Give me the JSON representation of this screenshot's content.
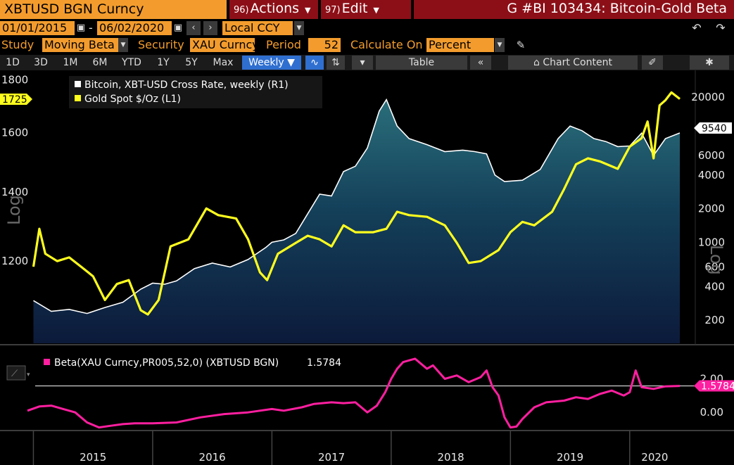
{
  "header": {
    "ticker": "XBTUSD BGN Curncy",
    "actions": {
      "num": "96)",
      "label": "Actions"
    },
    "edit": {
      "num": "97)",
      "label": "Edit"
    },
    "title": "G #BI 103434: Bitcoin-Gold Beta"
  },
  "dates": {
    "start": "01/01/2015",
    "end": "06/02/2020",
    "currency": "Local CCY"
  },
  "study": {
    "study_label": "Study",
    "study_value": "Moving Beta",
    "security_label": "Security",
    "security_value": "XAU Curncy",
    "period_label": "Period",
    "period_value": "52",
    "calc_label": "Calculate On",
    "calc_value": "Percent"
  },
  "timebar": {
    "ranges": [
      "1D",
      "3D",
      "1M",
      "6M",
      "YTD",
      "1Y",
      "5Y",
      "Max"
    ],
    "frequency": "Weekly",
    "table": "Table",
    "chart_content": "Chart Content"
  },
  "icons": {
    "undo": "undo-icon",
    "redo": "redo-icon",
    "pen": "pen-icon",
    "calendar": "calendar-icon",
    "line": "line-chart-icon",
    "bars": "bar-style-icon",
    "collapse": "double-chevron-left-icon",
    "chart_content": "chart-content-icon",
    "edit": "edit-icon",
    "gear": "gear-icon"
  },
  "colors": {
    "orange": "#f39c2d",
    "header_red": "#8c0f17",
    "gold_line": "#ffff1e",
    "bitcoin_line": "#ffffff",
    "beta_line": "#ff1fa0",
    "area_top": "#2a6e7a",
    "area_bottom": "#0c1a3a",
    "selected_blue": "#2f6fd0"
  },
  "chart_data": [
    {
      "type": "area",
      "legend": [
        {
          "name": "Bitcoin, XBT-USD Cross Rate, weekly (R1)",
          "color": "#ffffff"
        },
        {
          "name": "Gold Spot $/Oz (L1)",
          "color": "#ffff1e"
        }
      ],
      "x_labels": [
        "2015",
        "2016",
        "2017",
        "2018",
        "2019",
        "2020"
      ],
      "left_axis": {
        "label": "Log",
        "ticks": [
          "1800",
          "1600",
          "1400",
          "1200"
        ],
        "ylim": [
          1050,
          1810
        ]
      },
      "right_axis": {
        "label": "Log",
        "ticks": [
          "20000",
          "6000",
          "4000",
          "2000",
          "1000",
          "600",
          "400",
          "200"
        ],
        "ylim": [
          150,
          26000
        ]
      },
      "last_values": {
        "gold": "1725",
        "bitcoin": "9540"
      },
      "series": [
        {
          "name": "Bitcoin, XBT-USD Cross Rate, weekly (R1)",
          "axis": "right",
          "x": [
            2015.0,
            2015.15,
            2015.3,
            2015.45,
            2015.6,
            2015.75,
            2015.9,
            2016.0,
            2016.1,
            2016.2,
            2016.35,
            2016.5,
            2016.65,
            2016.8,
            2016.95,
            2017.0,
            2017.1,
            2017.2,
            2017.3,
            2017.4,
            2017.5,
            2017.6,
            2017.7,
            2017.8,
            2017.9,
            2017.96,
            2018.05,
            2018.15,
            2018.3,
            2018.45,
            2018.6,
            2018.7,
            2018.8,
            2018.87,
            2018.95,
            2019.1,
            2019.25,
            2019.4,
            2019.5,
            2019.6,
            2019.7,
            2019.8,
            2019.9,
            2020.0,
            2020.1,
            2020.2,
            2020.3,
            2020.42
          ],
          "values": [
            300,
            240,
            250,
            230,
            260,
            290,
            380,
            430,
            420,
            450,
            580,
            650,
            600,
            700,
            900,
            1000,
            1050,
            1200,
            1800,
            2700,
            2600,
            4300,
            4800,
            7000,
            15000,
            19000,
            11000,
            8500,
            7500,
            6500,
            6700,
            6500,
            6200,
            4000,
            3500,
            3600,
            4500,
            8500,
            11000,
            10000,
            8500,
            8000,
            7200,
            7300,
            9500,
            6000,
            8500,
            9540
          ]
        },
        {
          "name": "Gold Spot $/Oz (L1)",
          "axis": "left",
          "x": [
            2015.0,
            2015.05,
            2015.1,
            2015.2,
            2015.3,
            2015.4,
            2015.5,
            2015.6,
            2015.7,
            2015.8,
            2015.9,
            2015.96,
            2016.05,
            2016.15,
            2016.3,
            2016.45,
            2016.55,
            2016.7,
            2016.8,
            2016.9,
            2016.96,
            2017.05,
            2017.2,
            2017.3,
            2017.4,
            2017.5,
            2017.6,
            2017.7,
            2017.85,
            2017.96,
            2018.05,
            2018.15,
            2018.3,
            2018.45,
            2018.55,
            2018.65,
            2018.75,
            2018.9,
            2019.0,
            2019.1,
            2019.2,
            2019.35,
            2019.45,
            2019.55,
            2019.65,
            2019.75,
            2019.9,
            2020.0,
            2020.1,
            2020.15,
            2020.2,
            2020.25,
            2020.3,
            2020.35,
            2020.42
          ],
          "values": [
            1185,
            1290,
            1220,
            1200,
            1210,
            1185,
            1160,
            1100,
            1140,
            1150,
            1075,
            1065,
            1100,
            1240,
            1260,
            1350,
            1330,
            1320,
            1260,
            1170,
            1150,
            1220,
            1250,
            1270,
            1260,
            1240,
            1300,
            1280,
            1280,
            1290,
            1340,
            1330,
            1325,
            1300,
            1250,
            1195,
            1200,
            1230,
            1280,
            1310,
            1300,
            1340,
            1410,
            1490,
            1510,
            1500,
            1475,
            1550,
            1580,
            1640,
            1510,
            1700,
            1720,
            1750,
            1725
          ]
        }
      ]
    },
    {
      "type": "line",
      "legend": [
        {
          "name": "Beta(XAU Curncy,PR005,52,0) (XBTUSD BGN)",
          "value": "1.5784",
          "color": "#ff1fa0"
        }
      ],
      "right_axis": {
        "ticks": [
          "2.00",
          "0.00"
        ],
        "ylim": [
          -1.0,
          3.7
        ]
      },
      "last_value": "1.5784",
      "series": [
        {
          "name": "Beta(XAU Curncy,PR005,52,0) (XBTUSD BGN)",
          "x": [
            2014.95,
            2015.05,
            2015.15,
            2015.25,
            2015.35,
            2015.45,
            2015.55,
            2015.65,
            2015.75,
            2015.85,
            2016.0,
            2016.2,
            2016.4,
            2016.6,
            2016.8,
            2017.0,
            2017.1,
            2017.25,
            2017.35,
            2017.5,
            2017.6,
            2017.7,
            2017.8,
            2017.88,
            2017.95,
            2018.0,
            2018.05,
            2018.1,
            2018.2,
            2018.3,
            2018.35,
            2018.45,
            2018.55,
            2018.65,
            2018.75,
            2018.8,
            2018.85,
            2018.9,
            2018.95,
            2019.0,
            2019.05,
            2019.1,
            2019.2,
            2019.3,
            2019.45,
            2019.55,
            2019.65,
            2019.75,
            2019.85,
            2019.95,
            2020.0,
            2020.05,
            2020.1,
            2020.2,
            2020.3,
            2020.42
          ],
          "values": [
            0.1,
            0.35,
            0.4,
            0.2,
            0.0,
            -0.6,
            -0.9,
            -0.8,
            -0.7,
            -0.65,
            -0.65,
            -0.6,
            -0.3,
            -0.1,
            0.0,
            0.2,
            0.1,
            0.3,
            0.5,
            0.6,
            0.55,
            0.6,
            0.0,
            0.4,
            1.2,
            2.0,
            2.6,
            3.0,
            3.2,
            2.6,
            2.8,
            2.0,
            2.2,
            1.8,
            2.1,
            2.5,
            1.5,
            1.0,
            -0.3,
            -0.9,
            -0.85,
            -0.4,
            0.3,
            0.6,
            0.7,
            0.9,
            0.8,
            1.1,
            1.3,
            1.0,
            1.2,
            2.5,
            1.5,
            1.4,
            1.55,
            1.5784
          ]
        }
      ]
    }
  ]
}
